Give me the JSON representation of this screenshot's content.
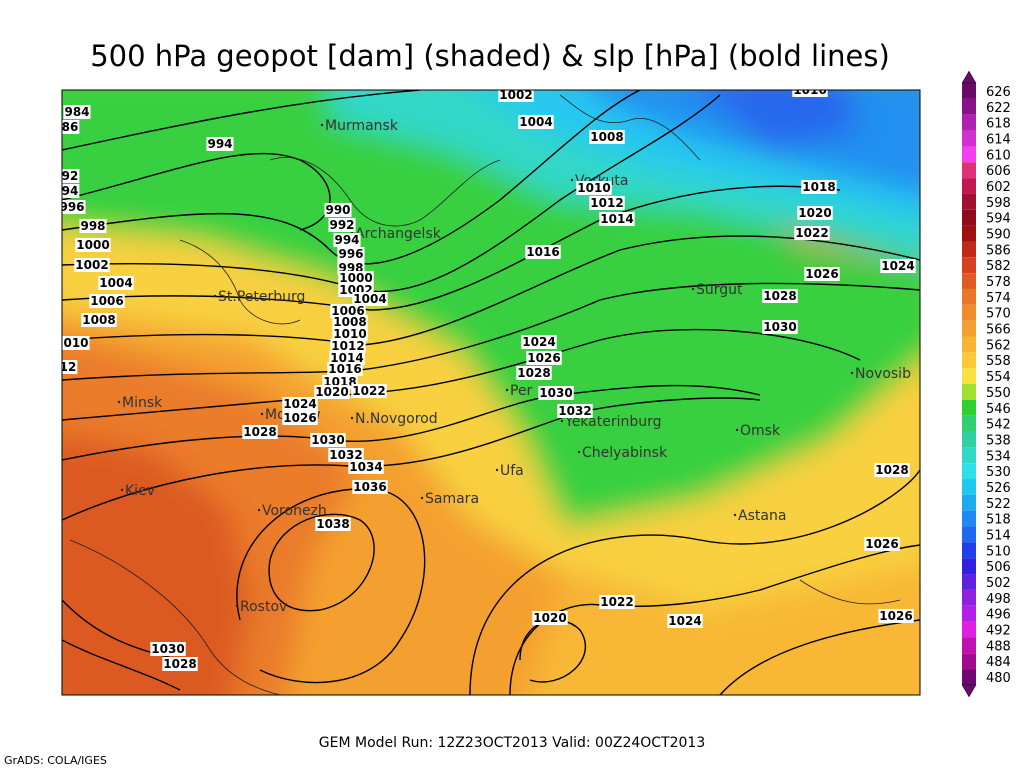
{
  "header": {
    "title": "500 hPa geopot [dam] (shaded) & slp [hPa] (bold lines)"
  },
  "cities": [
    "Murmansk",
    "Vorkuta",
    "Archangelsk",
    "St.Peterburg",
    "Surgut",
    "Novosib",
    "Minsk",
    "Moskow",
    "N.Novgorod",
    "Per",
    "Yekaterinburg",
    "Omsk",
    "Chelyabinsk",
    "Kiev",
    "Ufa",
    "Samara",
    "Voronezh",
    "Astana",
    "Rostov"
  ],
  "isobar_labels": [
    "984",
    "86",
    "994",
    "92",
    "94",
    "996",
    "998",
    "1000",
    "1002",
    "1004",
    "1006",
    "1008",
    "010",
    "12",
    "1002",
    "1004",
    "1008",
    "1010",
    "1012",
    "1014",
    "990",
    "992",
    "994",
    "996",
    "998",
    "1000",
    "1002",
    "1004",
    "1006",
    "1008",
    "1010",
    "1012",
    "1014",
    "1016",
    "1018",
    "1020",
    "1022",
    "1024",
    "1026",
    "1028",
    "1030",
    "1032",
    "1034",
    "1036",
    "1038",
    "1016",
    "1024",
    "1026",
    "1028",
    "1030",
    "1032",
    "1018",
    "1020",
    "1022",
    "1026",
    "1024",
    "1028",
    "1030",
    "1028",
    "1026",
    "1026",
    "1022",
    "1024",
    "1020",
    "1030",
    "1028",
    "1016"
  ],
  "colorbar": {
    "levels": [
      {
        "label": 626,
        "color": "#6a0a6a"
      },
      {
        "label": 622,
        "color": "#8a108a"
      },
      {
        "label": 618,
        "color": "#b020b0"
      },
      {
        "label": 614,
        "color": "#d030d0"
      },
      {
        "label": 610,
        "color": "#f040f0"
      },
      {
        "label": 606,
        "color": "#e0307a"
      },
      {
        "label": 602,
        "color": "#c01850"
      },
      {
        "label": 598,
        "color": "#a01030"
      },
      {
        "label": 594,
        "color": "#900a1c"
      },
      {
        "label": 590,
        "color": "#a01010"
      },
      {
        "label": 586,
        "color": "#c02818"
      },
      {
        "label": 582,
        "color": "#d84020"
      },
      {
        "label": 578,
        "color": "#e05c24"
      },
      {
        "label": 574,
        "color": "#e87828"
      },
      {
        "label": 570,
        "color": "#f08c2c"
      },
      {
        "label": 566,
        "color": "#f4a030"
      },
      {
        "label": 562,
        "color": "#f8b434"
      },
      {
        "label": 558,
        "color": "#fcc83a"
      },
      {
        "label": 554,
        "color": "#f8e040"
      },
      {
        "label": 550,
        "color": "#a0e030"
      },
      {
        "label": 546,
        "color": "#30d030"
      },
      {
        "label": 542,
        "color": "#30d070"
      },
      {
        "label": 538,
        "color": "#30d0a0"
      },
      {
        "label": 534,
        "color": "#30d8c8"
      },
      {
        "label": 530,
        "color": "#30e0e8"
      },
      {
        "label": 526,
        "color": "#20c8f0"
      },
      {
        "label": 522,
        "color": "#20a8f0"
      },
      {
        "label": 518,
        "color": "#2088f0"
      },
      {
        "label": 514,
        "color": "#2068f0"
      },
      {
        "label": 510,
        "color": "#2040e8"
      },
      {
        "label": 506,
        "color": "#3020e0"
      },
      {
        "label": 502,
        "color": "#6020e0"
      },
      {
        "label": 498,
        "color": "#9020e0"
      },
      {
        "label": 496,
        "color": "#b020e8"
      },
      {
        "label": 492,
        "color": "#e020e0"
      },
      {
        "label": 488,
        "color": "#c010b0"
      },
      {
        "label": 484,
        "color": "#a00a90"
      },
      {
        "label": 480,
        "color": "#700870"
      }
    ]
  },
  "footer": {
    "run": "GEM Model Run: 12Z23OCT2013 Valid: 00Z24OCT2013",
    "credit": "GrADS: COLA/IGES"
  }
}
